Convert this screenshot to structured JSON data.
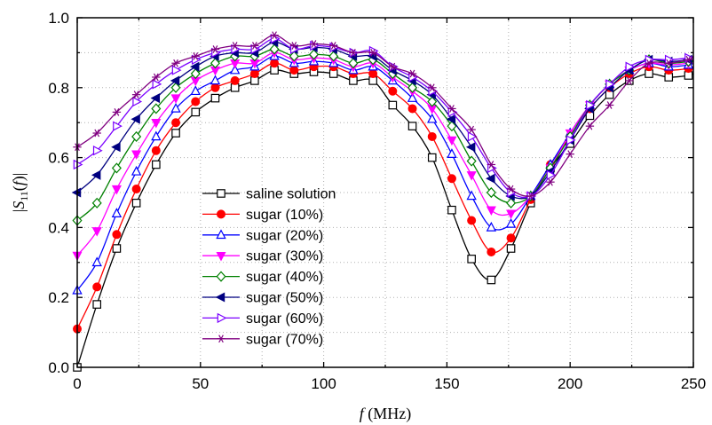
{
  "chart_data": {
    "type": "line",
    "title": "",
    "xlabel": {
      "italic": "f",
      "unit": " (MHz)"
    },
    "ylabel": {
      "open": "|",
      "italic": "S",
      "sub": "11",
      "mid": "(",
      "italic2": "f",
      "close": ")|"
    },
    "xlim": [
      0,
      250
    ],
    "ylim": [
      0.0,
      1.0
    ],
    "xticks": [
      0,
      50,
      100,
      150,
      200,
      250
    ],
    "xtick_labels": [
      "0",
      "50",
      "100",
      "150",
      "200",
      "250"
    ],
    "yticks": [
      0.0,
      0.2,
      0.4,
      0.6,
      0.8,
      1.0
    ],
    "ytick_labels": [
      "0.0",
      "0.2",
      "0.4",
      "0.6",
      "0.8",
      "1.0"
    ],
    "grid": true,
    "legend_position": "center-left",
    "x": [
      0,
      8,
      16,
      24,
      32,
      40,
      48,
      56,
      64,
      72,
      80,
      88,
      96,
      104,
      112,
      120,
      128,
      136,
      144,
      152,
      160,
      168,
      176,
      184,
      192,
      200,
      208,
      216,
      224,
      232,
      240,
      248,
      250
    ],
    "series": [
      {
        "name": "saline solution",
        "color": "#000000",
        "marker": "square-open",
        "values": [
          0.0,
          0.18,
          0.34,
          0.47,
          0.58,
          0.67,
          0.73,
          0.77,
          0.8,
          0.82,
          0.85,
          0.84,
          0.845,
          0.84,
          0.82,
          0.82,
          0.75,
          0.69,
          0.6,
          0.45,
          0.31,
          0.25,
          0.34,
          0.47,
          0.57,
          0.64,
          0.72,
          0.78,
          0.82,
          0.84,
          0.83,
          0.835,
          0.84
        ]
      },
      {
        "name": "sugar (10%)",
        "color": "#ff0000",
        "marker": "circle-filled",
        "values": [
          0.11,
          0.23,
          0.38,
          0.51,
          0.62,
          0.7,
          0.76,
          0.8,
          0.82,
          0.84,
          0.87,
          0.85,
          0.86,
          0.86,
          0.84,
          0.84,
          0.79,
          0.74,
          0.66,
          0.54,
          0.42,
          0.33,
          0.37,
          0.48,
          0.58,
          0.66,
          0.74,
          0.8,
          0.84,
          0.86,
          0.85,
          0.855,
          0.86
        ]
      },
      {
        "name": "sugar (20%)",
        "color": "#0000ff",
        "marker": "triangle-up-open",
        "values": [
          0.22,
          0.3,
          0.44,
          0.56,
          0.66,
          0.74,
          0.79,
          0.82,
          0.85,
          0.86,
          0.89,
          0.87,
          0.875,
          0.87,
          0.85,
          0.86,
          0.82,
          0.77,
          0.71,
          0.61,
          0.49,
          0.4,
          0.41,
          0.49,
          0.58,
          0.67,
          0.75,
          0.81,
          0.85,
          0.87,
          0.86,
          0.865,
          0.87
        ]
      },
      {
        "name": "sugar (30%)",
        "color": "#ff00ff",
        "marker": "triangle-down-filled",
        "values": [
          0.32,
          0.39,
          0.51,
          0.61,
          0.7,
          0.77,
          0.82,
          0.85,
          0.87,
          0.87,
          0.9,
          0.88,
          0.885,
          0.88,
          0.86,
          0.87,
          0.83,
          0.79,
          0.74,
          0.65,
          0.55,
          0.45,
          0.44,
          0.49,
          0.57,
          0.67,
          0.75,
          0.81,
          0.85,
          0.87,
          0.865,
          0.87,
          0.87
        ]
      },
      {
        "name": "sugar (40%)",
        "color": "#008000",
        "marker": "diamond-open",
        "values": [
          0.42,
          0.47,
          0.57,
          0.66,
          0.74,
          0.8,
          0.84,
          0.87,
          0.89,
          0.89,
          0.91,
          0.89,
          0.895,
          0.89,
          0.87,
          0.88,
          0.84,
          0.8,
          0.76,
          0.69,
          0.59,
          0.5,
          0.47,
          0.49,
          0.57,
          0.66,
          0.75,
          0.81,
          0.85,
          0.88,
          0.87,
          0.875,
          0.88
        ]
      },
      {
        "name": "sugar (50%)",
        "color": "#000080",
        "marker": "triangle-left-filled",
        "values": [
          0.5,
          0.55,
          0.63,
          0.71,
          0.77,
          0.82,
          0.86,
          0.89,
          0.9,
          0.9,
          0.93,
          0.91,
          0.915,
          0.91,
          0.89,
          0.89,
          0.85,
          0.82,
          0.78,
          0.71,
          0.63,
          0.54,
          0.49,
          0.49,
          0.56,
          0.65,
          0.74,
          0.8,
          0.85,
          0.88,
          0.875,
          0.88,
          0.89
        ]
      },
      {
        "name": "sugar (60%)",
        "color": "#7b00ff",
        "marker": "triangle-right-open",
        "values": [
          0.58,
          0.62,
          0.69,
          0.76,
          0.81,
          0.85,
          0.88,
          0.9,
          0.91,
          0.91,
          0.94,
          0.91,
          0.92,
          0.915,
          0.9,
          0.905,
          0.86,
          0.83,
          0.79,
          0.73,
          0.66,
          0.57,
          0.5,
          0.49,
          0.55,
          0.65,
          0.75,
          0.81,
          0.86,
          0.88,
          0.88,
          0.885,
          0.89
        ]
      },
      {
        "name": "sugar (70%)",
        "color": "#800080",
        "marker": "asterisk",
        "values": [
          0.63,
          0.67,
          0.73,
          0.78,
          0.83,
          0.87,
          0.89,
          0.91,
          0.92,
          0.92,
          0.95,
          0.92,
          0.925,
          0.92,
          0.9,
          0.9,
          0.86,
          0.84,
          0.8,
          0.74,
          0.68,
          0.58,
          0.51,
          0.49,
          0.53,
          0.61,
          0.69,
          0.75,
          0.82,
          0.87,
          0.87,
          0.88,
          0.89
        ]
      }
    ]
  }
}
